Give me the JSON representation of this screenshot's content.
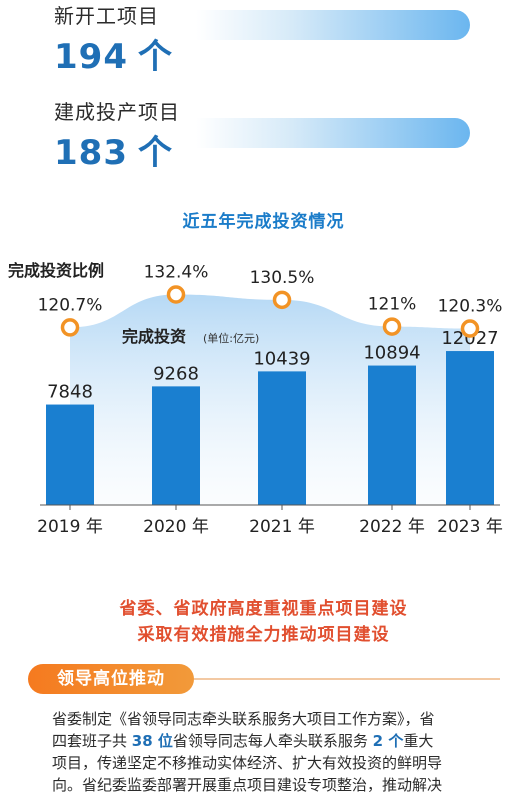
{
  "stats": [
    {
      "label": "新开工项目",
      "value": "194",
      "unit": "个"
    },
    {
      "label": "建成投产项目",
      "value": "183",
      "unit": "个"
    }
  ],
  "chart_data": {
    "type": "bar",
    "title": "近五年完成投资情况",
    "categories": [
      "2019 年",
      "2020 年",
      "2021 年",
      "2022 年",
      "2023 年"
    ],
    "series": [
      {
        "name": "完成投资",
        "unit": "(单位:亿元)",
        "values": [
          7848,
          9268,
          10439,
          10894,
          12027
        ],
        "color": "#1a7fd0"
      },
      {
        "name": "完成投资比例",
        "values": [
          "120.7%",
          "132.4%",
          "130.5%",
          "121%",
          "120.3%"
        ],
        "color": "#f29325"
      }
    ],
    "ylim": [
      0,
      12500
    ],
    "grid": false
  },
  "headlines": [
    "省委、省政府高度重视重点项目建设",
    "采取有效措施全力推动项目建设"
  ],
  "section": {
    "tag": "领导高位推动"
  },
  "paragraph": [
    [
      {
        "t": "省委制定《省领导同志牵头联系服务大项目工作方案》，省"
      }
    ],
    [
      {
        "t": "四套班子共 "
      },
      {
        "t": "38 位",
        "hl": true
      },
      {
        "t": "省领导同志每人牵头联系服务 "
      },
      {
        "t": "2 个",
        "hl": true
      },
      {
        "t": "重大"
      }
    ],
    [
      {
        "t": "项目，传递坚定不移推动实体经济、扩大有效投资的鲜明导"
      }
    ],
    [
      {
        "t": "向。省纪委监委部署开展重点项目建设专项整治，推动解决"
      }
    ]
  ],
  "colors": {
    "accent": "#1f6fb5",
    "bar": "#1a7fd0",
    "ratio": "#f29325",
    "headline": "#e14f2f",
    "tag": "#f57a1f"
  }
}
